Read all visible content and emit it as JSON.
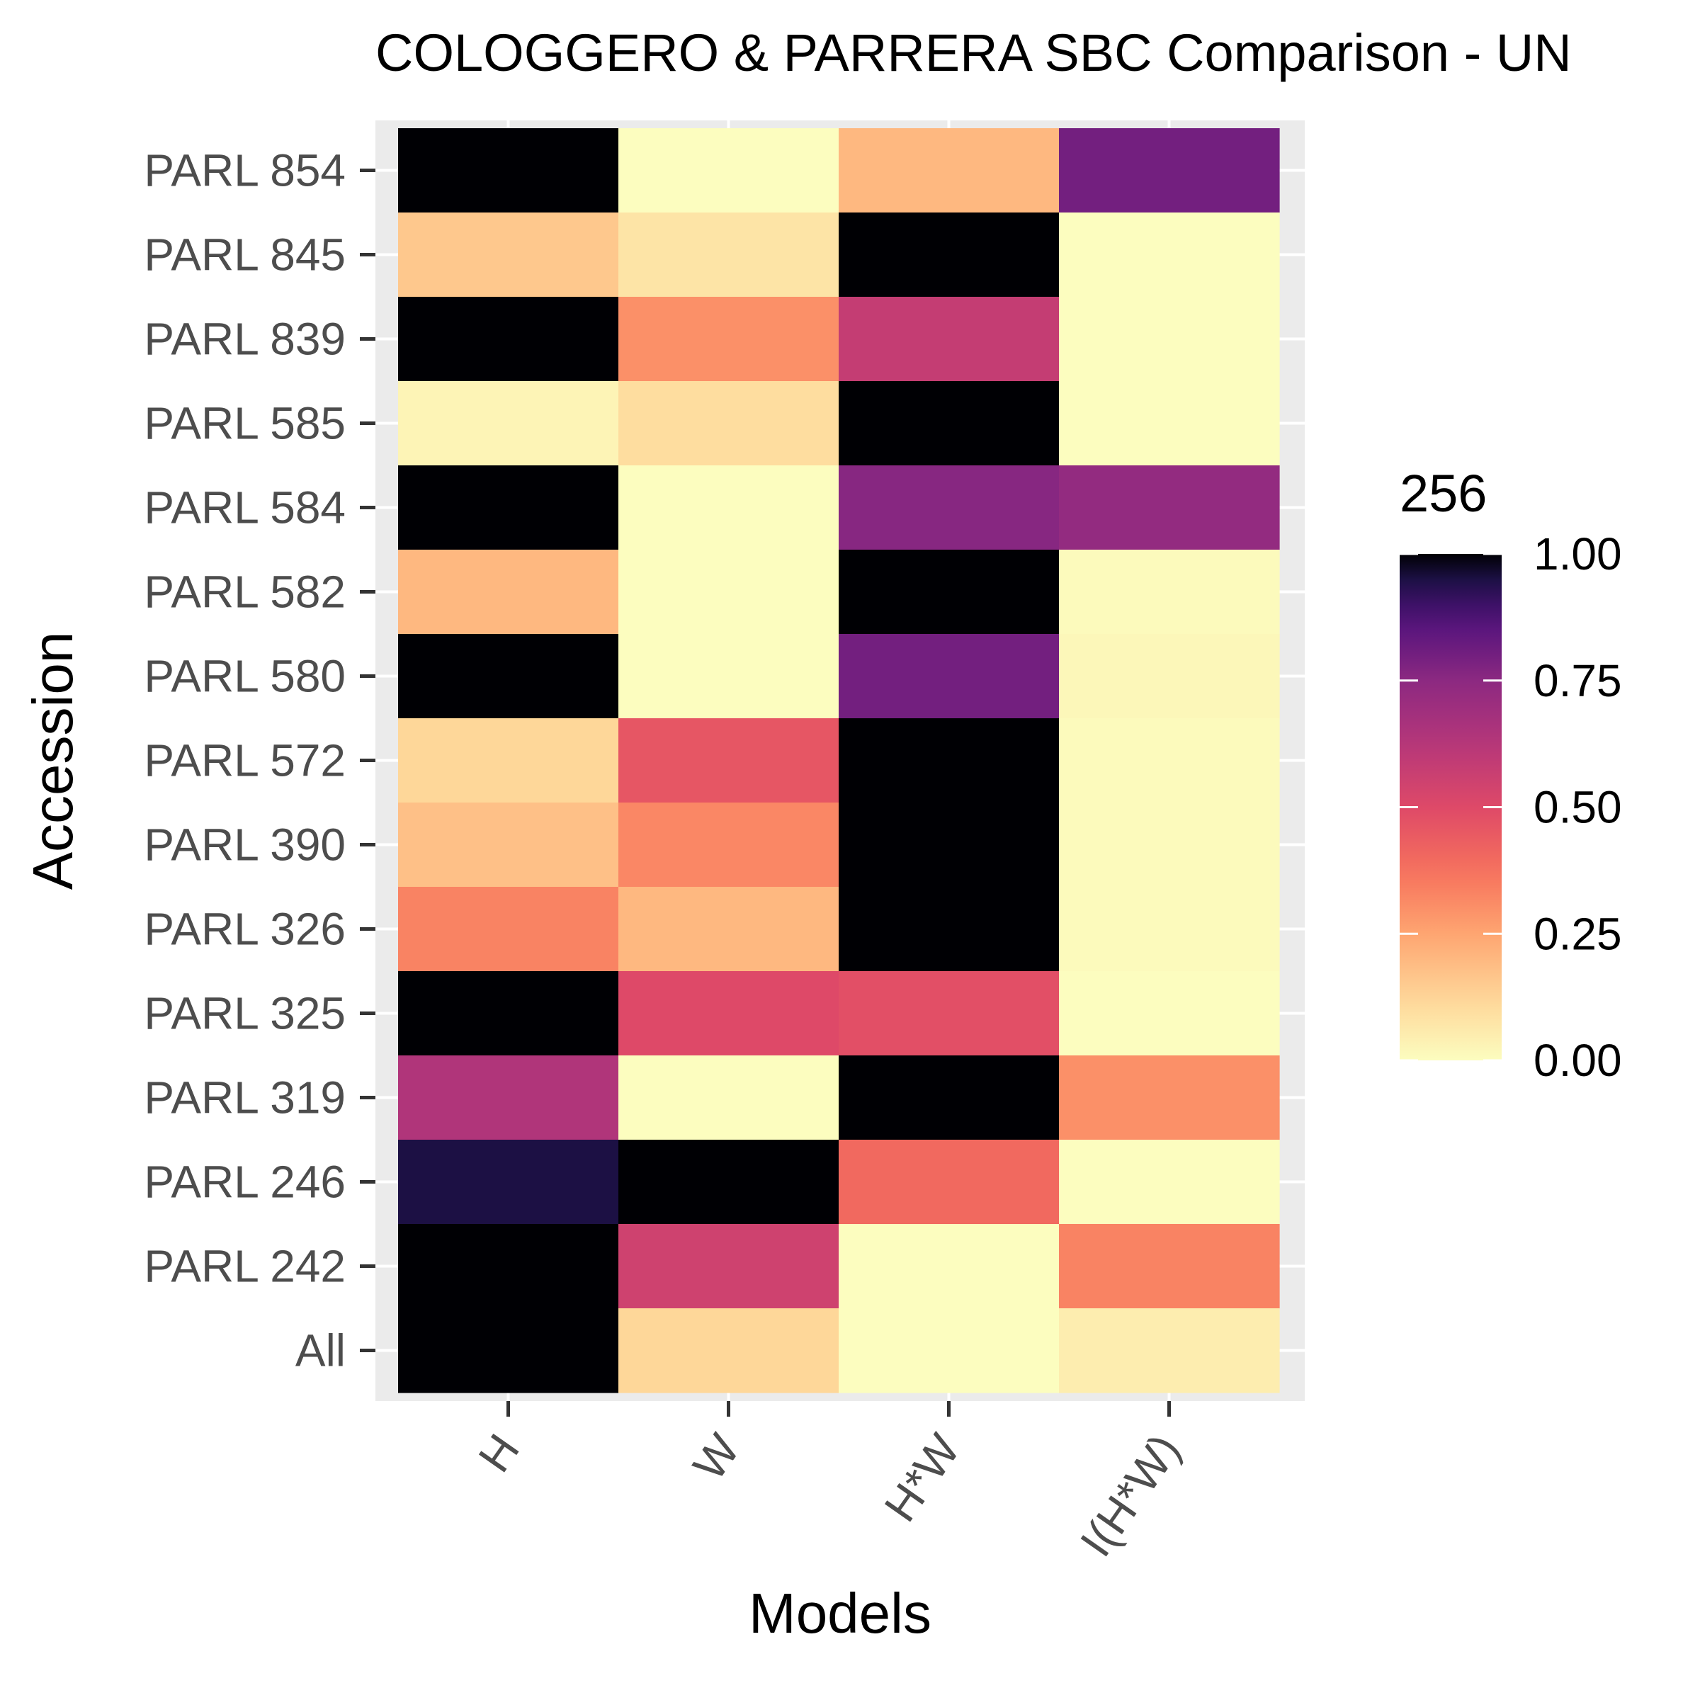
{
  "chart_data": {
    "type": "heatmap",
    "title": "COLOGGERO & PARRERA SBC Comparison - UN",
    "xlabel": "Models",
    "ylabel": "Accession",
    "x_categories": [
      "H",
      "W",
      "H*W",
      "I(H*W)"
    ],
    "y_categories": [
      "PARL 854",
      "PARL 845",
      "PARL 839",
      "PARL 585",
      "PARL 584",
      "PARL 582",
      "PARL 580",
      "PARL 572",
      "PARL 390",
      "PARL 326",
      "PARL 325",
      "PARL 319",
      "PARL 246",
      "PARL 242",
      "All"
    ],
    "values": [
      [
        1.0,
        0.0,
        0.2,
        0.8
      ],
      [
        0.16,
        0.08,
        1.0,
        0.0
      ],
      [
        1.0,
        0.3,
        0.58,
        0.0
      ],
      [
        0.03,
        0.1,
        1.0,
        0.0
      ],
      [
        1.0,
        0.0,
        0.76,
        0.73
      ],
      [
        0.2,
        0.0,
        1.0,
        0.01
      ],
      [
        1.0,
        0.0,
        0.8,
        0.02
      ],
      [
        0.12,
        0.46,
        1.0,
        0.01
      ],
      [
        0.18,
        0.32,
        1.0,
        0.01
      ],
      [
        0.33,
        0.2,
        1.0,
        0.01
      ],
      [
        1.0,
        0.5,
        0.48,
        0.0
      ],
      [
        0.64,
        0.0,
        1.0,
        0.3
      ],
      [
        0.95,
        1.0,
        0.4,
        0.0
      ],
      [
        1.0,
        0.55,
        0.0,
        0.33
      ],
      [
        1.0,
        0.12,
        0.0,
        0.05
      ]
    ],
    "legend": {
      "title": "256",
      "ticks": [
        "0.00",
        "0.25",
        "0.50",
        "0.75",
        "1.00"
      ],
      "tick_values": [
        0,
        0.25,
        0.5,
        0.75,
        1
      ],
      "range": [
        0,
        1
      ],
      "placement": "right",
      "colormap": "magma (reversed)"
    },
    "panel_background": "#ebebeb",
    "grid": true
  }
}
